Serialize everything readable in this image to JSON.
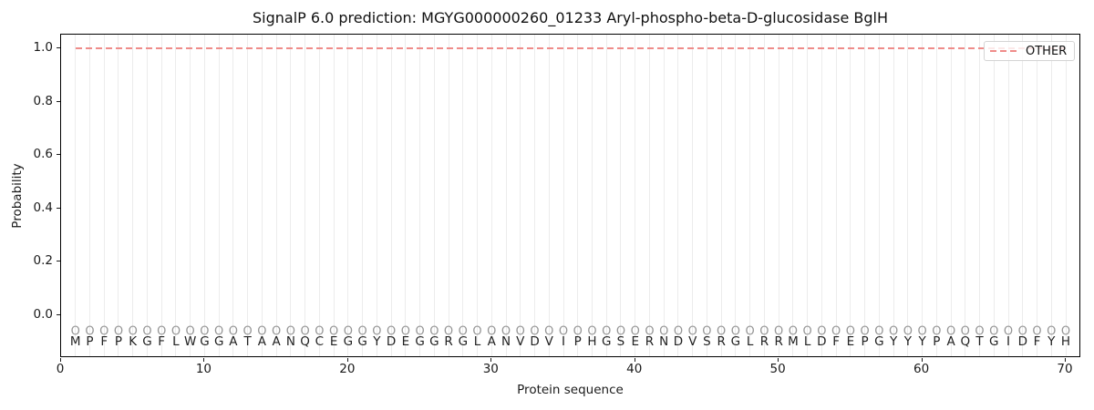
{
  "chart_data": {
    "type": "line",
    "title": "SignalP 6.0 prediction: MGYG000000260_01233 Aryl-phospho-beta-D-glucosidase BglH",
    "xlabel": "Protein sequence",
    "ylabel": "Probability",
    "xlim": [
      0,
      71.1
    ],
    "ylim": [
      -0.16,
      1.05
    ],
    "x_ticks": [
      0,
      10,
      20,
      30,
      40,
      50,
      60,
      70
    ],
    "y_ticks": [
      "0.0",
      "0.2",
      "0.4",
      "0.6",
      "0.8",
      "1.0"
    ],
    "grid": "vertical gridline at every residue position, no horizontal gridlines",
    "legend": {
      "position": "upper-right",
      "entries": [
        {
          "label": "OTHER",
          "style": "dashed",
          "color": "#ef8c8a"
        }
      ]
    },
    "series": [
      {
        "name": "OTHER",
        "style": "dashed",
        "color": "#ef8c8a",
        "x_start": 1,
        "x_step": 1,
        "values": [
          1.0,
          1.0,
          1.0,
          1.0,
          1.0,
          1.0,
          1.0,
          1.0,
          1.0,
          1.0,
          1.0,
          1.0,
          1.0,
          1.0,
          1.0,
          1.0,
          1.0,
          1.0,
          1.0,
          1.0,
          1.0,
          1.0,
          1.0,
          1.0,
          1.0,
          1.0,
          1.0,
          1.0,
          1.0,
          1.0,
          1.0,
          1.0,
          1.0,
          1.0,
          1.0,
          1.0,
          1.0,
          1.0,
          1.0,
          1.0,
          1.0,
          1.0,
          1.0,
          1.0,
          1.0,
          1.0,
          1.0,
          1.0,
          1.0,
          1.0,
          1.0,
          1.0,
          1.0,
          1.0,
          1.0,
          1.0,
          1.0,
          1.0,
          1.0,
          1.0,
          1.0,
          1.0,
          1.0,
          1.0,
          1.0,
          1.0,
          1.0,
          1.0,
          1.0,
          1.0
        ]
      }
    ],
    "sequence": "MPFPKGFLWGGATAANQCEGGYDEGGRGLANVDVIPHGSERNDVSRGLRRMLDFEPGYYYPAQTGIDFYH",
    "per_position_marker": "O",
    "marker_y": -0.06,
    "letter_y": -0.1
  },
  "colors": {
    "prediction_line": "#ef8c8a",
    "gridline": "#ececec",
    "marker": "#969696",
    "letter": "#222222",
    "spine": "#000000"
  }
}
